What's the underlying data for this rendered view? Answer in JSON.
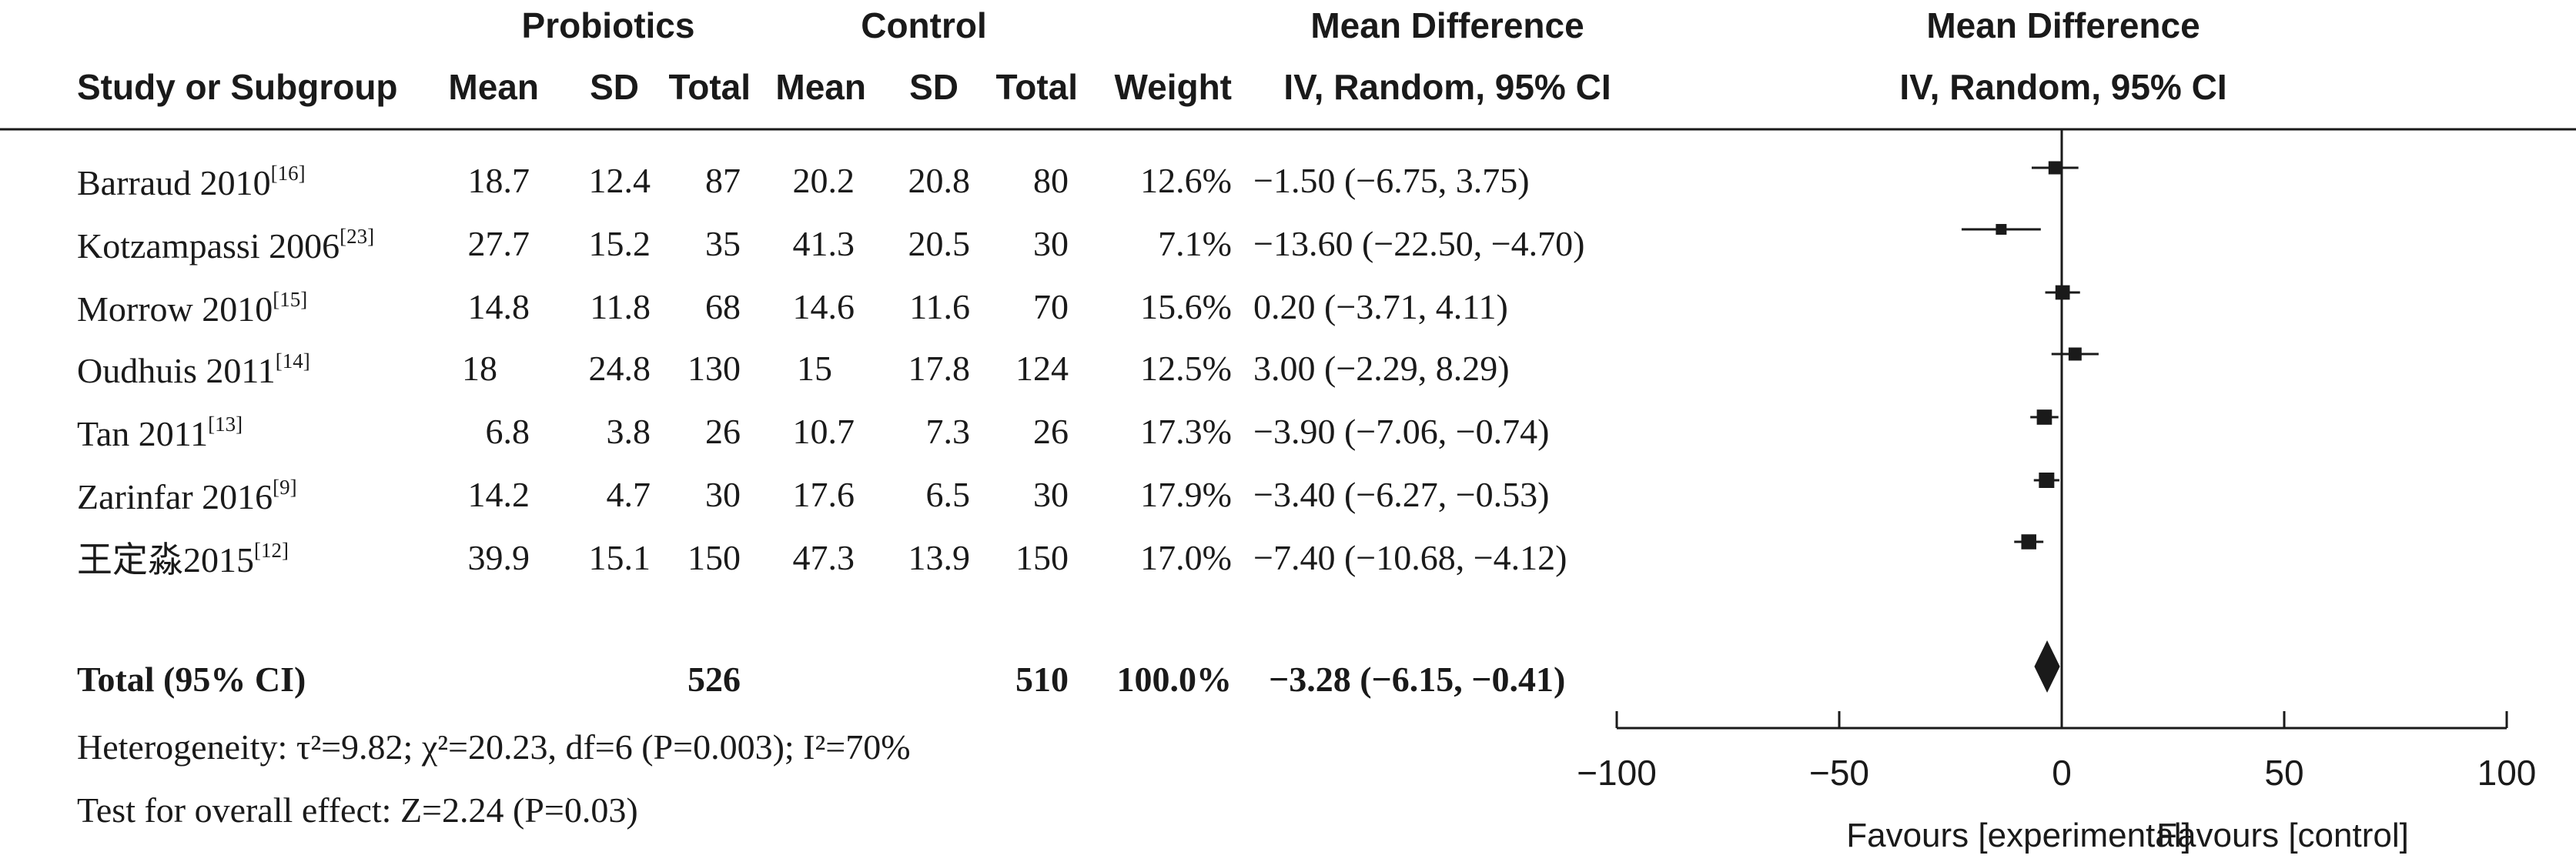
{
  "header": {
    "group_probiotics": "Probiotics",
    "group_control": "Control",
    "mean_diff_table": "Mean Difference",
    "mean_diff_plot": "Mean Difference",
    "col_study": "Study or Subgroup",
    "col_mean": "Mean",
    "col_sd": "SD",
    "col_total": "Total",
    "col_weight": "Weight",
    "col_ci": "IV, Random, 95% CI",
    "plot_subtitle": "IV, Random, 95% CI"
  },
  "studies": [
    {
      "name": "Barraud 2010",
      "ref": "[16]",
      "p_mean": "18.7",
      "p_sd": "12.4",
      "p_total": "87",
      "c_mean": "20.2",
      "c_sd": "20.8",
      "c_total": "80",
      "weight": "12.6%",
      "ci": "−1.50 (−6.75, 3.75)"
    },
    {
      "name": "Kotzampassi 2006",
      "ref": "[23]",
      "p_mean": "27.7",
      "p_sd": "15.2",
      "p_total": "35",
      "c_mean": "41.3",
      "c_sd": "20.5",
      "c_total": "30",
      "weight": "7.1%",
      "ci": "−13.60 (−22.50, −4.70)"
    },
    {
      "name": "Morrow 2010",
      "ref": "[15]",
      "p_mean": "14.8",
      "p_sd": "11.8",
      "p_total": "68",
      "c_mean": "14.6",
      "c_sd": "11.6",
      "c_total": "70",
      "weight": "15.6%",
      "ci": "0.20 (−3.71, 4.11)"
    },
    {
      "name": "Oudhuis 2011",
      "ref": "[14]",
      "p_mean": "18",
      "p_sd": "24.8",
      "p_total": "130",
      "c_mean": "15",
      "c_sd": "17.8",
      "c_total": "124",
      "weight": "12.5%",
      "ci": "3.00 (−2.29, 8.29)"
    },
    {
      "name": "Tan 2011",
      "ref": "[13]",
      "p_mean": "6.8",
      "p_sd": "3.8",
      "p_total": "26",
      "c_mean": "10.7",
      "c_sd": "7.3",
      "c_total": "26",
      "weight": "17.3%",
      "ci": "−3.90 (−7.06, −0.74)"
    },
    {
      "name": "Zarinfar 2016",
      "ref": "[9]",
      "p_mean": "14.2",
      "p_sd": "4.7",
      "p_total": "30",
      "c_mean": "17.6",
      "c_sd": "6.5",
      "c_total": "30",
      "weight": "17.9%",
      "ci": "−3.40 (−6.27, −0.53)"
    },
    {
      "name": "王定淼2015",
      "ref": "[12]",
      "p_mean": "39.9",
      "p_sd": "15.1",
      "p_total": "150",
      "c_mean": "47.3",
      "c_sd": "13.9",
      "c_total": "150",
      "weight": "17.0%",
      "ci": "−7.40 (−10.68, −4.12)"
    }
  ],
  "total": {
    "label": "Total (95% CI)",
    "p_total": "526",
    "c_total": "510",
    "weight": "100.0%",
    "ci": "−3.28 (−6.15, −0.41)"
  },
  "footer": {
    "heterogeneity": "Heterogeneity: τ²=9.82; χ²=20.23, df=6 (P=0.003); I²=70%",
    "overall": "Test for overall effect: Z=2.24 (P=0.03)"
  },
  "axis": {
    "favours_left": "Favours [experimental]",
    "favours_right": "Favours [control]"
  },
  "chart_data": {
    "type": "forest",
    "xlim": [
      -100,
      100
    ],
    "x_ticks": [
      -100,
      -50,
      0,
      50,
      100
    ],
    "x_tick_labels": [
      "−100",
      "−50",
      "0",
      "50",
      "100"
    ],
    "xlabel_left": "Favours [experimental]",
    "xlabel_right": "Favours [control]",
    "studies": [
      {
        "label": "Barraud 2010",
        "estimate": -1.5,
        "lower": -6.75,
        "upper": 3.75,
        "weight": 12.6
      },
      {
        "label": "Kotzampassi 2006",
        "estimate": -13.6,
        "lower": -22.5,
        "upper": -4.7,
        "weight": 7.1
      },
      {
        "label": "Morrow 2010",
        "estimate": 0.2,
        "lower": -3.71,
        "upper": 4.11,
        "weight": 15.6
      },
      {
        "label": "Oudhuis 2011",
        "estimate": 3.0,
        "lower": -2.29,
        "upper": 8.29,
        "weight": 12.5
      },
      {
        "label": "Tan 2011",
        "estimate": -3.9,
        "lower": -7.06,
        "upper": -0.74,
        "weight": 17.3
      },
      {
        "label": "Zarinfar 2016",
        "estimate": -3.4,
        "lower": -6.27,
        "upper": -0.53,
        "weight": 17.9
      },
      {
        "label": "王定淼2015",
        "estimate": -7.4,
        "lower": -10.68,
        "upper": -4.12,
        "weight": 17.0
      }
    ],
    "pooled": {
      "label": "Total (95% CI)",
      "estimate": -3.28,
      "lower": -6.15,
      "upper": -0.41,
      "weight": 100.0
    },
    "color": "#1a1a1a"
  }
}
